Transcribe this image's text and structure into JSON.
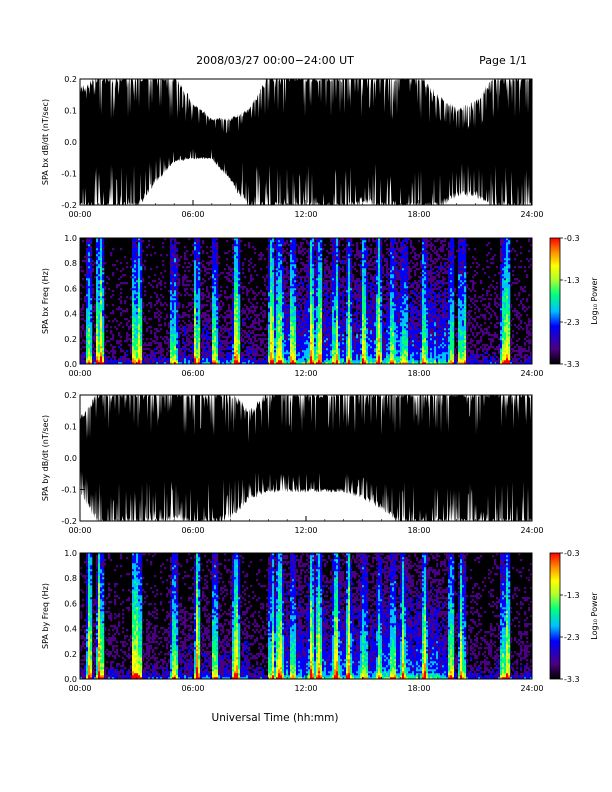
{
  "header": {
    "title": "2008/03/27  00:00−24:00 UT",
    "page": "Page 1/1"
  },
  "footer": {
    "xlabel": "Universal Time (hh:mm)"
  },
  "colors": {
    "plot_background": "#000000",
    "trace": "#ffffff",
    "colorscale": [
      "#000000",
      "#4b0082",
      "#0000ff",
      "#00bfff",
      "#00ff7f",
      "#adff2f",
      "#ffff00",
      "#ff8c00",
      "#ff0000"
    ]
  },
  "chart_data": [
    {
      "type": "line",
      "title": "",
      "ylabel": "SPA bx dB/dt (nT/sec)",
      "xlim": [
        "00:00",
        "24:00"
      ],
      "x_ticks": [
        "00:00",
        "06:00",
        "12:00",
        "18:00",
        "24:00"
      ],
      "ylim": [
        -0.2,
        0.2
      ],
      "y_ticks": [
        "-0.2",
        "-0.1",
        "0.0",
        "0.1",
        "0.2"
      ],
      "grid": false,
      "series": [
        {
          "x_hours": [
            0,
            1,
            2,
            3,
            4,
            5,
            6,
            7,
            8,
            9,
            10,
            11,
            12,
            13,
            14,
            15,
            16,
            17,
            18,
            19,
            20,
            21,
            22,
            23,
            24
          ],
          "upper_envelope": [
            0.16,
            0.2,
            0.2,
            0.2,
            0.2,
            0.2,
            0.12,
            0.07,
            0.07,
            0.1,
            0.2,
            0.2,
            0.2,
            0.2,
            0.2,
            0.2,
            0.2,
            0.2,
            0.2,
            0.14,
            0.1,
            0.12,
            0.2,
            0.2,
            0.2
          ],
          "lower_envelope": [
            -0.2,
            -0.2,
            -0.2,
            -0.2,
            -0.12,
            -0.06,
            -0.05,
            -0.05,
            -0.12,
            -0.2,
            -0.2,
            -0.2,
            -0.2,
            -0.2,
            -0.2,
            -0.18,
            -0.2,
            -0.2,
            -0.2,
            -0.2,
            -0.16,
            -0.16,
            -0.2,
            -0.2,
            -0.2
          ]
        }
      ]
    },
    {
      "type": "heatmap",
      "title": "",
      "ylabel": "SPA bx Freq (Hz)",
      "xlim": [
        "00:00",
        "24:00"
      ],
      "x_ticks": [
        "00:00",
        "06:00",
        "12:00",
        "18:00",
        "24:00"
      ],
      "ylim": [
        0.0,
        1.0
      ],
      "y_ticks": [
        "0.0",
        "0.2",
        "0.4",
        "0.6",
        "0.8",
        "1.0"
      ],
      "colorbar": {
        "label": "Log₁₀ Power",
        "range": [
          -3.3,
          -0.3
        ],
        "ticks": [
          "-0.3",
          "-1.3",
          "-2.3",
          "-3.3"
        ]
      },
      "bursts_hours": [
        0.5,
        1.0,
        1.1,
        2.9,
        3.1,
        5.0,
        6.2,
        7.2,
        8.3,
        10.2,
        10.6,
        11.3,
        12.3,
        12.7,
        13.6,
        14.3,
        15.1,
        15.9,
        16.6,
        17.2,
        18.3,
        19.7,
        20.3,
        22.5,
        22.7
      ]
    },
    {
      "type": "line",
      "title": "",
      "ylabel": "SPA by dB/dt (nT/sec)",
      "xlim": [
        "00:00",
        "24:00"
      ],
      "x_ticks": [
        "00:00",
        "06:00",
        "12:00",
        "18:00",
        "24:00"
      ],
      "ylim": [
        -0.2,
        0.2
      ],
      "y_ticks": [
        "-0.2",
        "-0.1",
        "0.0",
        "0.1",
        "0.2"
      ],
      "grid": false,
      "series": [
        {
          "x_hours": [
            0,
            1,
            2,
            3,
            4,
            5,
            6,
            7,
            8,
            9,
            10,
            11,
            12,
            13,
            14,
            15,
            16,
            17,
            18,
            19,
            20,
            21,
            22,
            23,
            24
          ],
          "upper_envelope": [
            0.12,
            0.2,
            0.2,
            0.2,
            0.2,
            0.2,
            0.2,
            0.2,
            0.2,
            0.14,
            0.2,
            0.2,
            0.2,
            0.2,
            0.2,
            0.2,
            0.2,
            0.2,
            0.2,
            0.2,
            0.2,
            0.2,
            0.2,
            0.2,
            0.2
          ],
          "lower_envelope": [
            -0.1,
            -0.2,
            -0.2,
            -0.2,
            -0.2,
            -0.18,
            -0.2,
            -0.2,
            -0.18,
            -0.12,
            -0.1,
            -0.1,
            -0.1,
            -0.1,
            -0.1,
            -0.12,
            -0.15,
            -0.2,
            -0.2,
            -0.2,
            -0.2,
            -0.2,
            -0.2,
            -0.2,
            -0.2
          ]
        }
      ]
    },
    {
      "type": "heatmap",
      "title": "",
      "ylabel": "SPA by Freq (Hz)",
      "xlim": [
        "00:00",
        "24:00"
      ],
      "x_ticks": [
        "00:00",
        "06:00",
        "12:00",
        "18:00",
        "24:00"
      ],
      "ylim": [
        0.0,
        1.0
      ],
      "y_ticks": [
        "0.0",
        "0.2",
        "0.4",
        "0.6",
        "0.8",
        "1.0"
      ],
      "colorbar": {
        "label": "Log₁₀ Power",
        "range": [
          -3.3,
          -0.3
        ],
        "ticks": [
          "-0.3",
          "-1.3",
          "-2.3",
          "-3.3"
        ]
      },
      "bursts_hours": [
        0.5,
        1.0,
        1.1,
        2.9,
        3.1,
        5.0,
        6.2,
        7.2,
        8.3,
        10.2,
        10.6,
        11.3,
        12.3,
        12.7,
        13.6,
        14.3,
        15.1,
        15.9,
        16.6,
        17.2,
        18.3,
        19.7,
        20.3,
        22.5,
        22.7
      ]
    }
  ]
}
